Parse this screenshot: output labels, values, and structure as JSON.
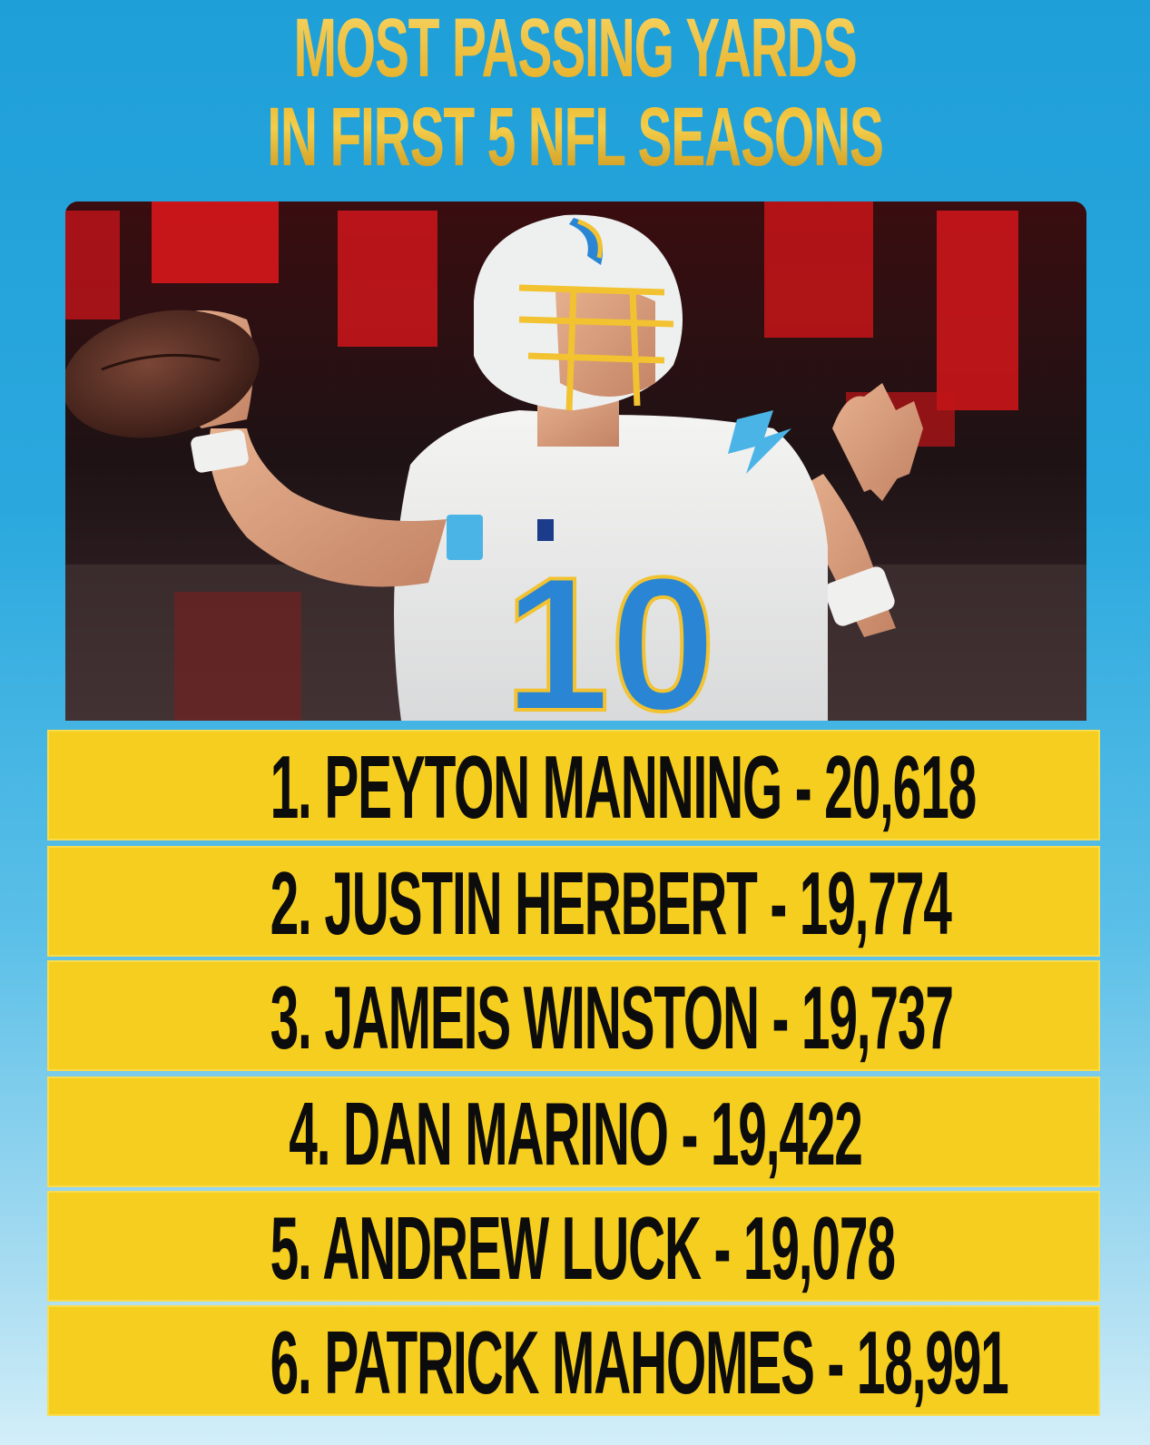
{
  "title": {
    "line1": "MOST PASSING YARDS",
    "line2": "IN FIRST 5 NFL SEASONS"
  },
  "photo": {
    "description_icon": "quarterback-throwing-photo",
    "jersey_number": "10"
  },
  "rankings": [
    {
      "text": "1. PEYTON MANNING - 20,618",
      "rank": 1,
      "player": "PEYTON MANNING",
      "yards": 20618
    },
    {
      "text": "2. JUSTIN HERBERT - 19,774",
      "rank": 2,
      "player": "JUSTIN HERBERT",
      "yards": 19774
    },
    {
      "text": "3. JAMEIS WINSTON - 19,737",
      "rank": 3,
      "player": "JAMEIS WINSTON",
      "yards": 19737
    },
    {
      "text": "4. DAN MARINO - 19,422",
      "rank": 4,
      "player": "DAN MARINO",
      "yards": 19422
    },
    {
      "text": "5. ANDREW LUCK - 19,078",
      "rank": 5,
      "player": "ANDREW LUCK",
      "yards": 19078
    },
    {
      "text": "6. PATRICK MAHOMES - 18,991",
      "rank": 6,
      "player": "PATRICK MAHOMES",
      "yards": 18991
    }
  ],
  "colors": {
    "background": "#2aa8de",
    "title_gold": "#f2c230",
    "row_yellow": "#f6ce1f",
    "row_text": "#0c0c0c"
  }
}
